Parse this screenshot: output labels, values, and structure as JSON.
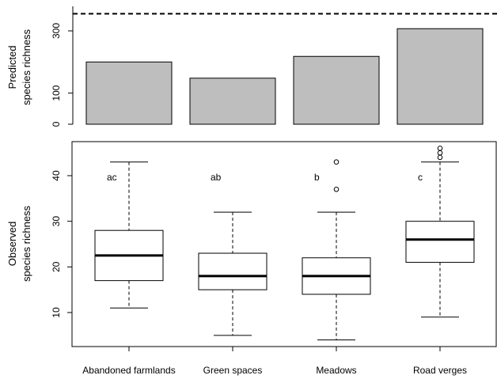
{
  "chart_data": [
    {
      "type": "bar",
      "panel": "top",
      "ylabel_lines": [
        "Predicted",
        "species richness"
      ],
      "yticks": [
        0,
        100,
        300
      ],
      "ylim": [
        0,
        380
      ],
      "categories": [
        "Abandoned farmlands",
        "Green spaces",
        "Meadows",
        "Road verges"
      ],
      "values": [
        200,
        148,
        218,
        307
      ],
      "reference_line": 355,
      "bar_color": "#bebebe"
    },
    {
      "type": "box",
      "panel": "bottom",
      "ylabel_lines": [
        "Observed",
        "species richness"
      ],
      "yticks": [
        10,
        20,
        30,
        40
      ],
      "ylim": [
        2,
        48
      ],
      "categories": [
        "Abandoned farmlands",
        "Green spaces",
        "Meadows",
        "Road verges"
      ],
      "boxes": [
        {
          "min": 11,
          "q1": 17,
          "median": 22.5,
          "q3": 28,
          "max": 43,
          "outliers": [],
          "letter": "ac"
        },
        {
          "min": 5,
          "q1": 15,
          "median": 18,
          "q3": 23,
          "max": 32,
          "outliers": [],
          "letter": "ab"
        },
        {
          "min": 4,
          "q1": 14,
          "median": 18,
          "q3": 22,
          "max": 32,
          "outliers": [
            37,
            43
          ],
          "letter": "b"
        },
        {
          "min": 9,
          "q1": 21,
          "median": 26,
          "q3": 30,
          "max": 43,
          "outliers": [
            44,
            45,
            46
          ],
          "letter": "c"
        }
      ]
    }
  ]
}
